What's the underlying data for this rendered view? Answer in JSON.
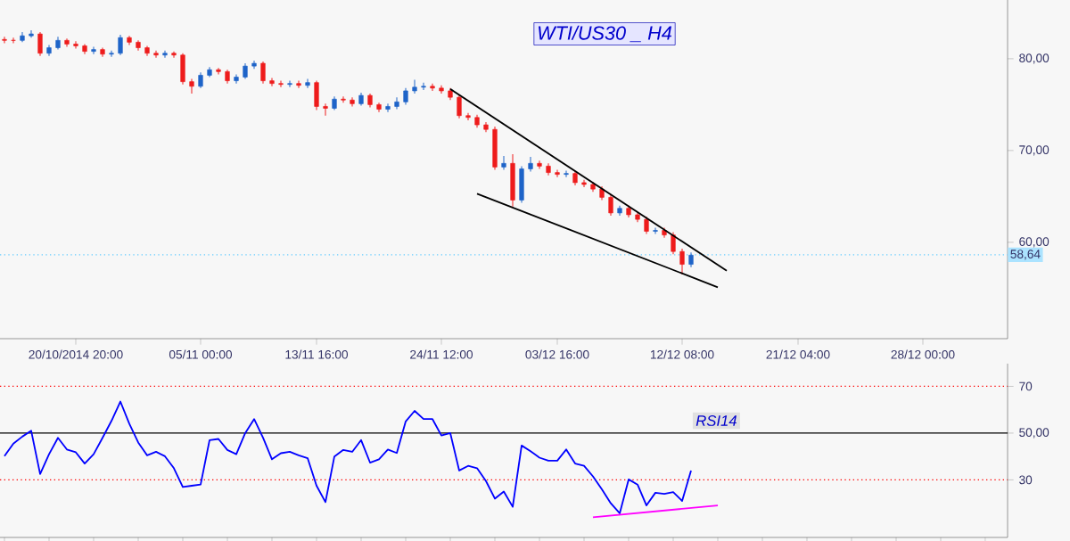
{
  "chart_data": [
    {
      "type": "candlestick",
      "title": "WTI/US30 _ H4",
      "categories": [
        null,
        null,
        null,
        null,
        null,
        null,
        null,
        null,
        "20/10/2014 20:00",
        null,
        null,
        null,
        null,
        null,
        null,
        null,
        null,
        null,
        null,
        null,
        null,
        null,
        "05/11 00:00",
        null,
        null,
        null,
        null,
        null,
        null,
        null,
        null,
        null,
        null,
        null,
        null,
        "13/11 16:00",
        null,
        null,
        null,
        null,
        null,
        null,
        null,
        null,
        null,
        null,
        null,
        null,
        null,
        "24/11 12:00",
        null,
        null,
        null,
        null,
        null,
        null,
        null,
        null,
        null,
        null,
        null,
        null,
        "03/12 16:00",
        null,
        null,
        null,
        null,
        null,
        null,
        null,
        null,
        null,
        null,
        null,
        null,
        null,
        "12/12 08:00",
        null,
        null,
        null,
        null,
        null,
        null,
        null,
        null,
        null,
        null,
        null,
        null,
        "21/12 04:00",
        null,
        null,
        null,
        null,
        null,
        null,
        null,
        null,
        null,
        null,
        null,
        null,
        null,
        "28/12 00:00",
        null,
        null,
        null,
        null,
        null,
        null,
        null,
        null,
        null
      ],
      "ohlc": [
        [
          82.1,
          82.4,
          81.7,
          82.0
        ],
        [
          82.0,
          82.3,
          81.7,
          82.0
        ],
        [
          82.0,
          82.9,
          81.8,
          82.5
        ],
        [
          82.5,
          83.1,
          82.3,
          82.7
        ],
        [
          82.7,
          82.9,
          80.3,
          80.6
        ],
        [
          80.6,
          81.5,
          80.3,
          81.2
        ],
        [
          81.2,
          82.4,
          81.0,
          82.0
        ],
        [
          82.0,
          82.2,
          81.3,
          81.6
        ],
        [
          81.6,
          81.9,
          81.1,
          81.4
        ],
        [
          81.4,
          81.6,
          80.5,
          80.8
        ],
        [
          80.8,
          81.3,
          80.5,
          81.0
        ],
        [
          81.0,
          81.2,
          80.2,
          80.5
        ],
        [
          80.5,
          80.9,
          80.2,
          80.6
        ],
        [
          80.6,
          82.6,
          80.4,
          82.3
        ],
        [
          82.3,
          82.5,
          81.5,
          81.8
        ],
        [
          81.8,
          82.0,
          80.9,
          81.2
        ],
        [
          81.2,
          81.4,
          80.3,
          80.6
        ],
        [
          80.6,
          80.9,
          80.1,
          80.4
        ],
        [
          80.4,
          80.9,
          80.1,
          80.6
        ],
        [
          80.6,
          80.8,
          80.1,
          80.4
        ],
        [
          80.4,
          80.6,
          77.2,
          77.5
        ],
        [
          77.5,
          77.8,
          76.2,
          77.0
        ],
        [
          77.0,
          78.5,
          76.8,
          78.2
        ],
        [
          78.2,
          79.1,
          78.0,
          78.8
        ],
        [
          78.8,
          79.0,
          78.3,
          78.6
        ],
        [
          78.6,
          78.8,
          77.3,
          77.6
        ],
        [
          77.6,
          78.3,
          77.3,
          78.0
        ],
        [
          78.0,
          79.5,
          77.8,
          79.2
        ],
        [
          79.2,
          79.8,
          78.9,
          79.5
        ],
        [
          79.5,
          79.7,
          77.3,
          77.6
        ],
        [
          77.6,
          77.9,
          77.0,
          77.3
        ],
        [
          77.3,
          77.6,
          76.9,
          77.2
        ],
        [
          77.2,
          77.6,
          76.9,
          77.3
        ],
        [
          77.3,
          77.6,
          76.8,
          77.1
        ],
        [
          77.1,
          77.8,
          76.8,
          77.4
        ],
        [
          77.4,
          77.6,
          74.4,
          74.8
        ],
        [
          74.8,
          75.1,
          73.8,
          74.6
        ],
        [
          74.6,
          75.9,
          74.4,
          75.6
        ],
        [
          75.6,
          75.9,
          75.2,
          75.5
        ],
        [
          75.5,
          75.8,
          74.8,
          75.1
        ],
        [
          75.1,
          76.3,
          74.9,
          76.0
        ],
        [
          76.0,
          76.2,
          74.7,
          75.0
        ],
        [
          75.0,
          75.2,
          74.2,
          74.5
        ],
        [
          74.5,
          75.1,
          74.2,
          74.8
        ],
        [
          74.8,
          75.8,
          74.5,
          75.3
        ],
        [
          75.3,
          76.8,
          75.0,
          76.5
        ],
        [
          76.5,
          77.7,
          76.2,
          76.9
        ],
        [
          76.9,
          77.4,
          76.6,
          77.0
        ],
        [
          77.0,
          77.3,
          76.5,
          76.8
        ],
        [
          76.8,
          77.1,
          76.2,
          76.5
        ],
        [
          76.5,
          76.8,
          75.5,
          75.8
        ],
        [
          75.8,
          76.1,
          73.5,
          73.8
        ],
        [
          73.8,
          74.1,
          73.3,
          73.6
        ],
        [
          73.6,
          73.9,
          72.5,
          72.8
        ],
        [
          72.8,
          73.1,
          72.0,
          72.3
        ],
        [
          72.3,
          72.6,
          67.9,
          68.2
        ],
        [
          68.2,
          69.4,
          67.9,
          68.6
        ],
        [
          68.6,
          69.6,
          63.9,
          64.6
        ],
        [
          64.6,
          68.3,
          64.3,
          68.0
        ],
        [
          68.0,
          69.3,
          67.7,
          68.6
        ],
        [
          68.6,
          68.9,
          68.0,
          68.3
        ],
        [
          68.3,
          68.6,
          67.3,
          67.6
        ],
        [
          67.6,
          67.9,
          67.1,
          67.4
        ],
        [
          67.4,
          67.8,
          67.1,
          67.5
        ],
        [
          67.5,
          67.8,
          66.2,
          66.5
        ],
        [
          66.5,
          66.8,
          66.0,
          66.3
        ],
        [
          66.3,
          66.6,
          65.5,
          65.8
        ],
        [
          65.8,
          66.1,
          64.6,
          64.9
        ],
        [
          64.9,
          65.2,
          62.9,
          63.2
        ],
        [
          63.2,
          64.0,
          62.9,
          63.7
        ],
        [
          63.7,
          64.0,
          62.7,
          63.0
        ],
        [
          63.0,
          63.3,
          62.2,
          62.5
        ],
        [
          62.5,
          62.8,
          60.9,
          61.2
        ],
        [
          61.2,
          61.6,
          60.9,
          61.3
        ],
        [
          61.3,
          61.6,
          60.5,
          60.8
        ],
        [
          60.8,
          61.1,
          58.7,
          59.0
        ],
        [
          59.0,
          59.3,
          56.5,
          57.6
        ],
        [
          57.6,
          58.9,
          57.3,
          58.6
        ],
        null,
        null,
        null,
        null,
        null,
        null,
        null,
        null,
        null,
        null,
        null,
        null,
        null,
        null,
        null,
        null,
        null,
        null,
        null,
        null,
        null,
        null,
        null,
        null,
        null,
        null,
        null,
        null,
        null,
        null,
        null,
        null,
        null,
        null,
        null
      ],
      "colors": [
        "#ee1c1c",
        "#ee1c1c",
        "#1e64c8",
        "#1e64c8",
        "#ee1c1c",
        "#1e64c8",
        "#1e64c8",
        "#ee1c1c",
        "#ee1c1c",
        "#ee1c1c",
        "#1e64c8",
        "#ee1c1c",
        "#1e64c8",
        "#1e64c8",
        "#ee1c1c",
        "#ee1c1c",
        "#ee1c1c",
        "#ee1c1c",
        "#1e64c8",
        "#ee1c1c",
        "#ee1c1c",
        "#ee1c1c",
        "#1e64c8",
        "#1e64c8",
        "#ee1c1c",
        "#ee1c1c",
        "#1e64c8",
        "#1e64c8",
        "#1e64c8",
        "#ee1c1c",
        "#ee1c1c",
        "#ee1c1c",
        "#1e64c8",
        "#ee1c1c",
        "#1e64c8",
        "#ee1c1c",
        "#ee1c1c",
        "#1e64c8",
        "#ee1c1c",
        "#ee1c1c",
        "#1e64c8",
        "#ee1c1c",
        "#ee1c1c",
        "#1e64c8",
        "#1e64c8",
        "#1e64c8",
        "#1e64c8",
        "#1e64c8",
        "#ee1c1c",
        "#ee1c1c",
        "#ee1c1c",
        "#ee1c1c",
        "#ee1c1c",
        "#ee1c1c",
        "#ee1c1c",
        "#ee1c1c",
        "#1e64c8",
        "#ee1c1c",
        "#1e64c8",
        "#1e64c8",
        "#ee1c1c",
        "#ee1c1c",
        "#ee1c1c",
        "#1e64c8",
        "#ee1c1c",
        "#ee1c1c",
        "#ee1c1c",
        "#ee1c1c",
        "#ee1c1c",
        "#1e64c8",
        "#ee1c1c",
        "#ee1c1c",
        "#ee1c1c",
        "#1e64c8",
        "#ee1c1c",
        "#ee1c1c",
        "#ee1c1c",
        "#1e64c8",
        null,
        null,
        null,
        null,
        null,
        null,
        null,
        null,
        null,
        null,
        null,
        null,
        null,
        null,
        null,
        null,
        null,
        null,
        null,
        null,
        null,
        null,
        null,
        null,
        null,
        null,
        null,
        null,
        null,
        null,
        null,
        null,
        null,
        null,
        null
      ],
      "series": [
        {
          "type": "line",
          "color": "#000000",
          "values": [
            null,
            null,
            null,
            null,
            null,
            null,
            null,
            null,
            null,
            null,
            null,
            null,
            null,
            null,
            null,
            null,
            null,
            null,
            null,
            null,
            null,
            null,
            null,
            null,
            null,
            null,
            null,
            null,
            null,
            null,
            null,
            null,
            null,
            null,
            null,
            null,
            null,
            null,
            null,
            null,
            null,
            null,
            null,
            null,
            null,
            null,
            null,
            null,
            null,
            null,
            76.7,
            null,
            null,
            null,
            null,
            null,
            null,
            null,
            null,
            null,
            null,
            null,
            null,
            null,
            null,
            null,
            null,
            null,
            null,
            null,
            null,
            null,
            null,
            null,
            null,
            null,
            null,
            null,
            null,
            null,
            null,
            56.9,
            null,
            null,
            null,
            null,
            null,
            null,
            null,
            null,
            null,
            null,
            null,
            null,
            null,
            null,
            null,
            null,
            null,
            null,
            null,
            null,
            null,
            null,
            null,
            null,
            null,
            null,
            null,
            null,
            null,
            null,
            null
          ]
        },
        {
          "type": "line",
          "color": "#000000",
          "values": [
            null,
            null,
            null,
            null,
            null,
            null,
            null,
            null,
            null,
            null,
            null,
            null,
            null,
            null,
            null,
            null,
            null,
            null,
            null,
            null,
            null,
            null,
            null,
            null,
            null,
            null,
            null,
            null,
            null,
            null,
            null,
            null,
            null,
            null,
            null,
            null,
            null,
            null,
            null,
            null,
            null,
            null,
            null,
            null,
            null,
            null,
            null,
            null,
            null,
            null,
            null,
            null,
            null,
            65.3,
            null,
            null,
            null,
            null,
            null,
            null,
            null,
            null,
            null,
            null,
            null,
            null,
            null,
            null,
            null,
            null,
            null,
            null,
            null,
            null,
            null,
            null,
            null,
            null,
            null,
            null,
            55.1,
            null,
            null,
            null,
            null,
            null,
            null,
            null,
            null,
            null,
            null,
            null,
            null,
            null,
            null,
            null,
            null,
            null,
            null,
            null,
            null,
            null,
            null,
            null,
            null,
            null,
            null,
            null,
            null,
            null,
            null,
            null,
            null
          ]
        }
      ],
      "ylim": [
        49.5,
        86.4
      ],
      "yticks": [
        {
          "value": 60,
          "label": "60,00"
        },
        {
          "value": 70,
          "label": "70,00"
        },
        {
          "value": 80,
          "label": "80,00"
        }
      ],
      "ref_lines": [
        {
          "axis": "y",
          "value": 58.64,
          "label": "58,64",
          "color": "#66ccff",
          "line_style": "dotted"
        }
      ]
    },
    {
      "type": "line",
      "categories": [
        null,
        null,
        null,
        null,
        null,
        null,
        null,
        null,
        null,
        null,
        null,
        null,
        null,
        null,
        null,
        null,
        null,
        null,
        null,
        null,
        null,
        null,
        null,
        null,
        null,
        null,
        null,
        null,
        null,
        null,
        null,
        null,
        null,
        null,
        null,
        null,
        null,
        null,
        null,
        null,
        null,
        null,
        null,
        null,
        null,
        null,
        null,
        null,
        null,
        null,
        null,
        null,
        null,
        null,
        null,
        null,
        null,
        null,
        null,
        null,
        null,
        null,
        null,
        null,
        null,
        null,
        null,
        null,
        null,
        null,
        null,
        null,
        null,
        null,
        null,
        null,
        null,
        null,
        null,
        null,
        null,
        null,
        null,
        null,
        null,
        null,
        null,
        null,
        null,
        null,
        null,
        null,
        null,
        null,
        null,
        null,
        null,
        null,
        null,
        null,
        null,
        null,
        null,
        null,
        null,
        null,
        null,
        null,
        null,
        null,
        null,
        null,
        null
      ],
      "series": [
        {
          "color": "#0000ff",
          "values": [
            40.2,
            45.5,
            48.5,
            51,
            32.5,
            41,
            48,
            43,
            41.8,
            37,
            41,
            48,
            55.2,
            63.5,
            54,
            46,
            40.5,
            42,
            40.1,
            35,
            27,
            27.5,
            28,
            47,
            47.5,
            42.8,
            41,
            50,
            56,
            48,
            38.8,
            41.4,
            42,
            40.5,
            39.3,
            27.5,
            20.5,
            40,
            42.8,
            42,
            47,
            37.4,
            38.8,
            43,
            41.5,
            55,
            59.5,
            56,
            56,
            49,
            50,
            34,
            36,
            35,
            29.5,
            22,
            25,
            18.5,
            44.7,
            42.3,
            39.5,
            38.2,
            38.2,
            43,
            37,
            36,
            31.5,
            26,
            20,
            15.7,
            30.2,
            28,
            19.1,
            24.5,
            24,
            24.8,
            21,
            34,
            null,
            null,
            null,
            null,
            null,
            null,
            null,
            null,
            null,
            null,
            null,
            null,
            null,
            null,
            null,
            null,
            null,
            null,
            null,
            null,
            null,
            null,
            null,
            null,
            null,
            null,
            null,
            null,
            null,
            null,
            null,
            null,
            null,
            null,
            null
          ]
        },
        {
          "color": "#ff00ff",
          "values": [
            null,
            null,
            null,
            null,
            null,
            null,
            null,
            null,
            null,
            null,
            null,
            null,
            null,
            null,
            null,
            null,
            null,
            null,
            null,
            null,
            null,
            null,
            null,
            null,
            null,
            null,
            null,
            null,
            null,
            null,
            null,
            null,
            null,
            null,
            null,
            null,
            null,
            null,
            null,
            null,
            null,
            null,
            null,
            null,
            null,
            null,
            null,
            null,
            null,
            null,
            null,
            null,
            null,
            null,
            null,
            null,
            null,
            null,
            null,
            null,
            null,
            null,
            null,
            null,
            null,
            null,
            14.0,
            null,
            null,
            null,
            null,
            null,
            null,
            null,
            null,
            null,
            null,
            null,
            null,
            null,
            19.1,
            null,
            null,
            null,
            null,
            null,
            null,
            null,
            null,
            null,
            null,
            null,
            null,
            null,
            null,
            null,
            null,
            null,
            null,
            null,
            null,
            null,
            null,
            null,
            null,
            null,
            null,
            null,
            null,
            null,
            null,
            null,
            null
          ]
        }
      ],
      "tick_labels": "y",
      "ylim": [
        5.4,
        79.7
      ],
      "yticks": [
        30,
        {
          "value": 50,
          "label": "50,00"
        },
        70
      ],
      "ref_lines": [
        {
          "axis": "y",
          "value": 70,
          "color": "#ff0000",
          "line_style": "dotted"
        },
        {
          "axis": "y",
          "value": 50,
          "color": "#000000",
          "line_style": "solid"
        },
        {
          "axis": "y",
          "value": 30,
          "color": "#ff0000",
          "line_style": "dotted"
        }
      ],
      "annotations": [
        "RSI14"
      ]
    }
  ]
}
